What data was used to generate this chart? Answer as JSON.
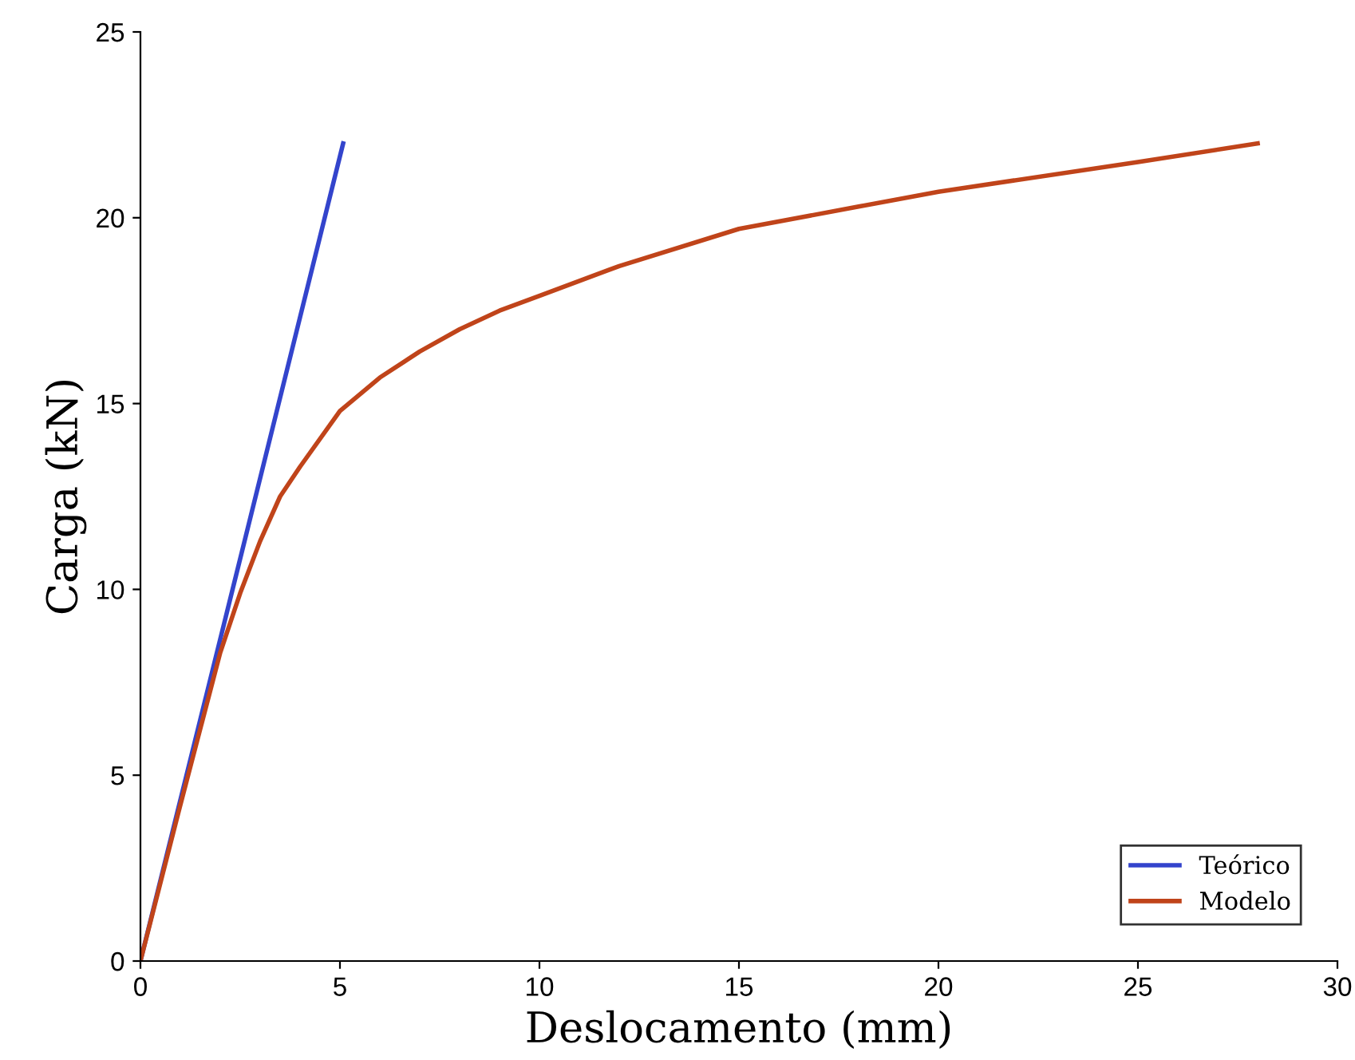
{
  "chart_data": {
    "type": "line",
    "xlabel": "Deslocamento (mm)",
    "ylabel": "Carga (kN)",
    "xlim": [
      0,
      30
    ],
    "ylim": [
      0,
      25
    ],
    "xticks": [
      0,
      5,
      10,
      15,
      20,
      25,
      30
    ],
    "yticks": [
      0,
      5,
      10,
      15,
      20,
      25
    ],
    "grid": false,
    "legend": "bottom right",
    "line_style": "solid",
    "marker": "none",
    "series": [
      {
        "name": "Teórico",
        "color": "#3344cc",
        "x": [
          0,
          5.08
        ],
        "values": [
          0,
          22.0
        ]
      },
      {
        "name": "Modelo",
        "color": "#c0441a",
        "x": [
          0,
          1,
          2,
          2.5,
          3,
          3.5,
          4,
          5,
          6,
          7,
          8,
          9,
          10,
          12,
          15,
          18,
          20,
          25,
          28
        ],
        "values": [
          0,
          4.2,
          8.3,
          9.9,
          11.3,
          12.5,
          13.3,
          14.8,
          15.7,
          16.4,
          17.0,
          17.5,
          17.9,
          18.7,
          19.7,
          20.3,
          20.7,
          21.5,
          22.0
        ]
      }
    ]
  }
}
